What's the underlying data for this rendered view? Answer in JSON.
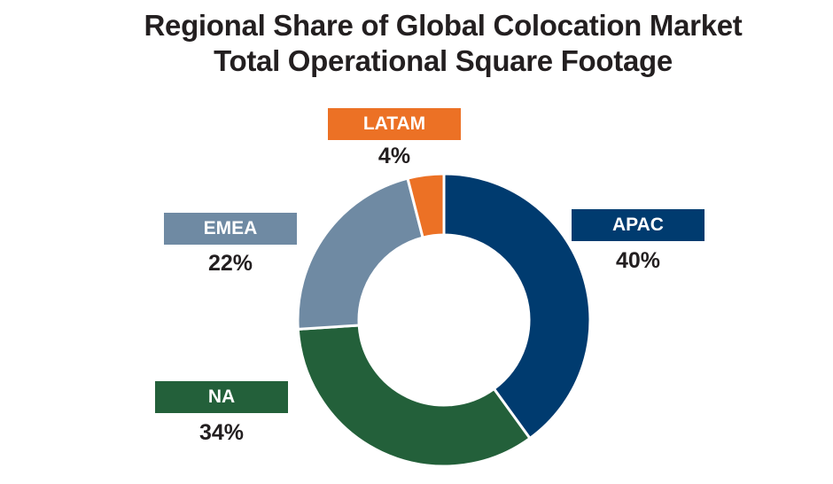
{
  "chart_data": {
    "type": "pie",
    "title": "Regional Share of Global Colocation Market",
    "subtitle": "Total Operational Square Footage",
    "categories": [
      "APAC",
      "NA",
      "EMEA",
      "LATAM"
    ],
    "values": [
      40,
      34,
      22,
      4
    ],
    "value_labels": [
      "40%",
      "34%",
      "22%",
      "4%"
    ],
    "colors": [
      "#003b6f",
      "#23603a",
      "#6f8aa3",
      "#ec7125"
    ],
    "donut": true,
    "legend": "callout labels"
  }
}
